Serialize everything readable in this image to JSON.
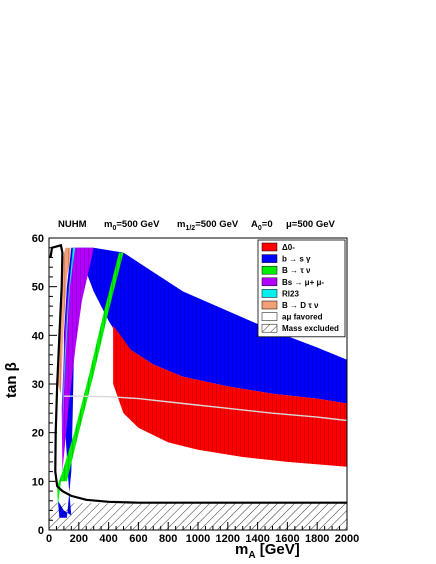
{
  "header": {
    "model": "NUHM",
    "m0": "m",
    "m0_sub": "0",
    "m0_val": "=500 GeV",
    "m12": "m",
    "m12_sub": "1/2",
    "m12_val": "=500 GeV",
    "a0": "A",
    "a0_sub": "0",
    "a0_val": "=0",
    "mu": "μ=500 GeV"
  },
  "axes": {
    "ylabel": "tan β",
    "xlabel_main": "m",
    "xlabel_sub": "A",
    "xlabel_unit": " [GeV]"
  },
  "chart_data": {
    "type": "area",
    "xlim": [
      0,
      2000
    ],
    "ylim": [
      0,
      60
    ],
    "x_ticks": [
      0,
      200,
      400,
      600,
      800,
      1000,
      1200,
      1400,
      1600,
      1800,
      2000
    ],
    "y_ticks": [
      0,
      10,
      20,
      30,
      40,
      50,
      60
    ],
    "grid": false,
    "legend_position": "top-right",
    "legend": [
      {
        "label": "Δ0-",
        "color": "#ff0000",
        "kind": "fill"
      },
      {
        "label": "b → s γ",
        "color": "#0000ff",
        "kind": "fill"
      },
      {
        "label": "B → τ ν",
        "color": "#00ee00",
        "kind": "fill"
      },
      {
        "label": "Bs → μ+ μ-",
        "color": "#b400ff",
        "kind": "fill"
      },
      {
        "label": "Rl23",
        "color": "#00f0f0",
        "kind": "fill"
      },
      {
        "label": "B → D τ ν",
        "color": "#f4a078",
        "kind": "fill"
      },
      {
        "label": "aμ favored",
        "color": "#ffffff",
        "kind": "outline"
      },
      {
        "label": "Mass excluded",
        "color": "#ffffff",
        "kind": "hatch"
      }
    ],
    "regions": [
      {
        "name": "b → s γ",
        "color": "#0000ff",
        "points": [
          [
            60,
            6
          ],
          [
            100,
            4
          ],
          [
            150,
            3
          ],
          [
            130,
            10
          ],
          [
            110,
            20
          ],
          [
            100,
            30
          ],
          [
            100,
            40
          ],
          [
            120,
            50
          ],
          [
            150,
            58
          ],
          [
            300,
            58
          ],
          [
            500,
            57
          ],
          [
            700,
            53
          ],
          [
            900,
            49
          ],
          [
            1200,
            45
          ],
          [
            1500,
            41
          ],
          [
            1800,
            37.5
          ],
          [
            2000,
            35
          ],
          [
            2000,
            26
          ],
          [
            1800,
            27
          ],
          [
            1500,
            28
          ],
          [
            1200,
            29.5
          ],
          [
            900,
            31.5
          ],
          [
            700,
            34
          ],
          [
            500,
            38
          ],
          [
            400,
            43
          ],
          [
            300,
            49
          ],
          [
            250,
            53
          ],
          [
            200,
            56
          ],
          [
            170,
            40
          ],
          [
            160,
            25
          ],
          [
            150,
            12
          ],
          [
            120,
            2.5
          ],
          [
            70,
            2.5
          ]
        ]
      },
      {
        "name": "Δ0-",
        "color": "#ff0000",
        "points": [
          [
            430,
            30
          ],
          [
            500,
            24
          ],
          [
            600,
            21
          ],
          [
            800,
            18
          ],
          [
            1000,
            16.5
          ],
          [
            1300,
            15
          ],
          [
            1600,
            14
          ],
          [
            2000,
            13
          ],
          [
            2000,
            26
          ],
          [
            1800,
            27
          ],
          [
            1500,
            28
          ],
          [
            1200,
            29.5
          ],
          [
            900,
            31.5
          ],
          [
            700,
            34
          ],
          [
            550,
            37
          ],
          [
            480,
            40
          ],
          [
            430,
            42
          ]
        ]
      },
      {
        "name": "Bs → μ+ μ-",
        "color": "#b400ff",
        "points": [
          [
            90,
            12
          ],
          [
            130,
            25
          ],
          [
            180,
            38
          ],
          [
            220,
            47
          ],
          [
            280,
            55
          ],
          [
            300,
            58
          ],
          [
            170,
            58
          ],
          [
            130,
            50
          ],
          [
            105,
            40
          ],
          [
            85,
            25
          ]
        ]
      },
      {
        "name": "Rl23",
        "color": "#00f0f0",
        "points": [
          [
            90,
            20
          ],
          [
            110,
            35
          ],
          [
            140,
            50
          ],
          [
            175,
            58
          ],
          [
            160,
            58
          ],
          [
            130,
            48
          ],
          [
            100,
            33
          ]
        ]
      },
      {
        "name": "B → D τ ν",
        "color": "#f4a078",
        "points": [
          [
            60,
            30
          ],
          [
            70,
            45
          ],
          [
            90,
            55
          ],
          [
            110,
            58
          ],
          [
            145,
            58
          ],
          [
            140,
            55
          ],
          [
            120,
            52
          ],
          [
            95,
            40
          ],
          [
            80,
            28
          ]
        ]
      },
      {
        "name": "B → τ ν",
        "color": "#00ee00",
        "points": [
          [
            60,
            5
          ],
          [
            80,
            10
          ],
          [
            120,
            10
          ],
          [
            200,
            20
          ],
          [
            300,
            32
          ],
          [
            400,
            45
          ],
          [
            500,
            57
          ],
          [
            470,
            57
          ],
          [
            370,
            45
          ],
          [
            270,
            32
          ],
          [
            170,
            20
          ],
          [
            90,
            12
          ],
          [
            55,
            9
          ]
        ]
      },
      {
        "name": "Mass excluded",
        "color": "#ffffff",
        "points": [
          [
            0,
            0
          ],
          [
            2000,
            0
          ],
          [
            2000,
            5.5
          ],
          [
            0,
            5.5
          ]
        ]
      }
    ],
    "boundaries": [
      {
        "name": "aμ favored",
        "color": "#d8d8d8",
        "points": [
          [
            100,
            27.5
          ],
          [
            200,
            27.5
          ],
          [
            400,
            27.4
          ],
          [
            600,
            27
          ],
          [
            900,
            26
          ],
          [
            1200,
            25
          ],
          [
            1500,
            24
          ],
          [
            1800,
            23.2
          ],
          [
            2000,
            22.5
          ]
        ]
      },
      {
        "name": "excluded contour",
        "color": "#000000",
        "points": [
          [
            10,
            56
          ],
          [
            20,
            58
          ],
          [
            80,
            58.5
          ],
          [
            90,
            57
          ],
          [
            85,
            50
          ],
          [
            70,
            40
          ],
          [
            55,
            30
          ],
          [
            45,
            20
          ],
          [
            42,
            12
          ],
          [
            55,
            9
          ],
          [
            90,
            8
          ],
          [
            150,
            7
          ],
          [
            250,
            6.2
          ],
          [
            400,
            5.8
          ],
          [
            600,
            5.6
          ],
          [
            2000,
            5.6
          ]
        ]
      }
    ]
  }
}
